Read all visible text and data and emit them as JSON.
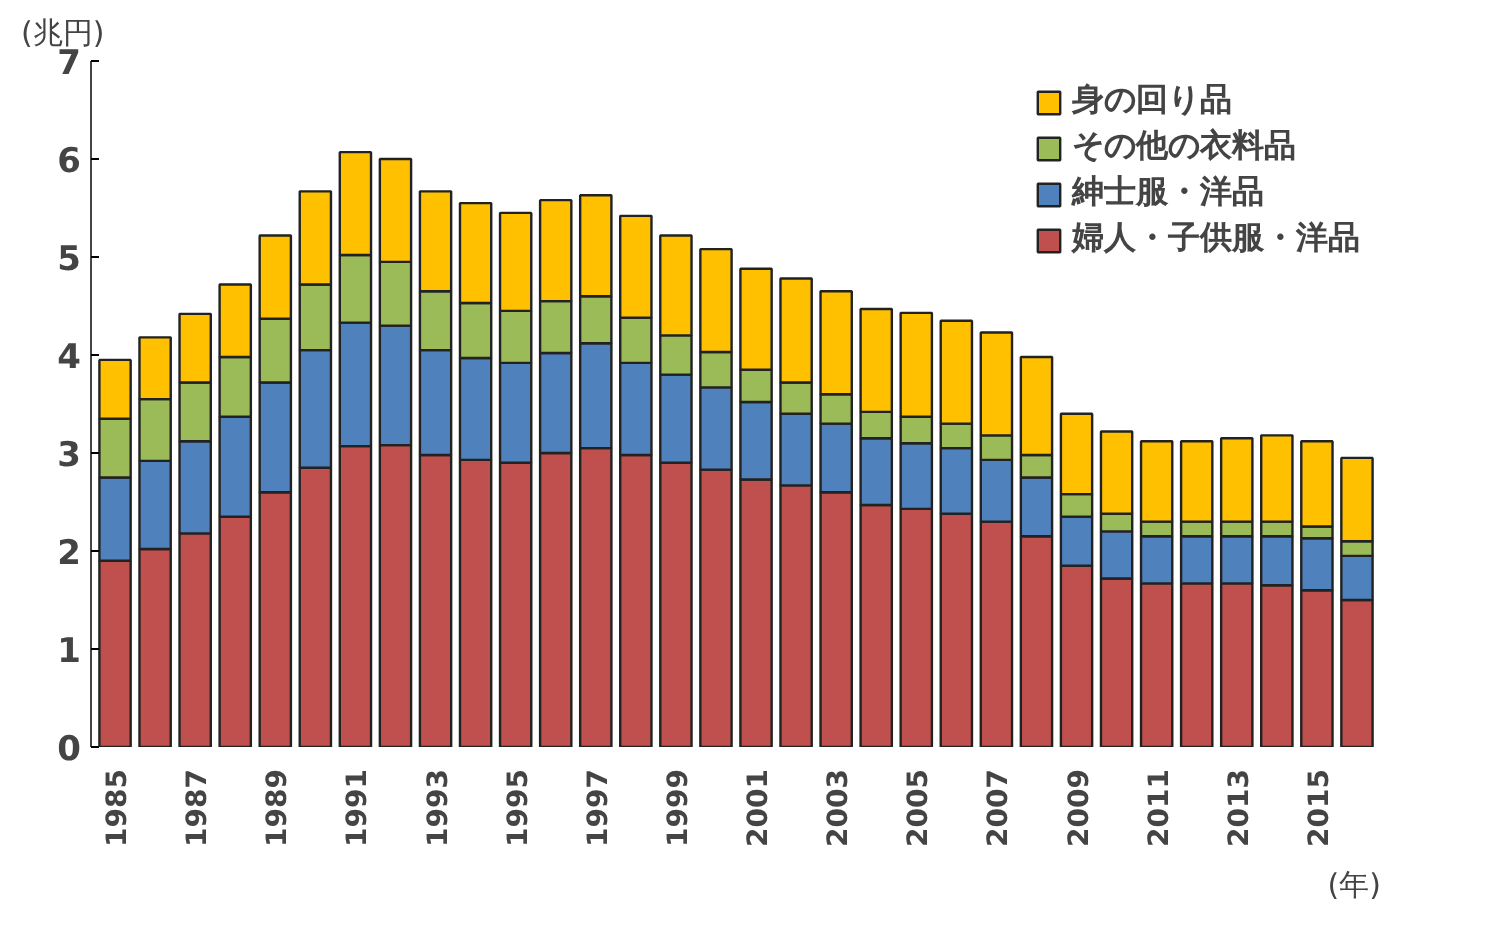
{
  "chart_data": {
    "type": "bar",
    "stacked": true,
    "xlabel": "(年)",
    "ylabel": "(兆円)",
    "categories": [
      "1985",
      null,
      "1987",
      null,
      "1989",
      null,
      "1991",
      null,
      "1993",
      null,
      "1995",
      null,
      "1997",
      null,
      "1999",
      null,
      "2001",
      null,
      "2003",
      null,
      "2005",
      null,
      "2007",
      null,
      "2009",
      null,
      "2011",
      null,
      "2013",
      null,
      "2015",
      null
    ],
    "series": [
      {
        "name": "婦人・子供服・洋品",
        "color": "#c0504d",
        "values": [
          1.9,
          2.02,
          2.18,
          2.35,
          2.6,
          2.85,
          3.07,
          3.08,
          2.98,
          2.93,
          2.9,
          3.0,
          3.05,
          2.98,
          2.9,
          2.83,
          2.73,
          2.67,
          2.6,
          2.47,
          2.43,
          2.38,
          2.3,
          2.15,
          1.85,
          1.72,
          1.67,
          1.67,
          1.67,
          1.65,
          1.6,
          1.5
        ]
      },
      {
        "name": "紳士服・洋品",
        "color": "#4f81bd",
        "values": [
          0.85,
          0.9,
          0.94,
          1.02,
          1.12,
          1.2,
          1.26,
          1.22,
          1.07,
          1.04,
          1.02,
          1.02,
          1.07,
          0.94,
          0.9,
          0.84,
          0.79,
          0.73,
          0.7,
          0.68,
          0.67,
          0.67,
          0.63,
          0.6,
          0.5,
          0.48,
          0.48,
          0.48,
          0.48,
          0.5,
          0.53,
          0.45
        ]
      },
      {
        "name": "その他の衣料品",
        "color": "#9bbb59",
        "values": [
          0.6,
          0.63,
          0.6,
          0.61,
          0.65,
          0.67,
          0.69,
          0.65,
          0.6,
          0.56,
          0.53,
          0.53,
          0.48,
          0.46,
          0.4,
          0.36,
          0.33,
          0.32,
          0.3,
          0.27,
          0.27,
          0.25,
          0.25,
          0.23,
          0.23,
          0.18,
          0.15,
          0.15,
          0.15,
          0.15,
          0.12,
          0.15
        ]
      },
      {
        "name": "身の回り品",
        "color": "#ffc000",
        "values": [
          0.6,
          0.63,
          0.7,
          0.74,
          0.85,
          0.95,
          1.05,
          1.05,
          1.02,
          1.02,
          1.0,
          1.03,
          1.03,
          1.04,
          1.02,
          1.05,
          1.03,
          1.06,
          1.05,
          1.05,
          1.06,
          1.05,
          1.05,
          1.0,
          0.82,
          0.84,
          0.82,
          0.82,
          0.85,
          0.88,
          0.87,
          0.85
        ]
      }
    ],
    "ylim": [
      0,
      7
    ],
    "yticks": [
      0,
      1,
      2,
      3,
      4,
      5,
      6,
      7
    ],
    "grid": false,
    "legend": "top right"
  }
}
